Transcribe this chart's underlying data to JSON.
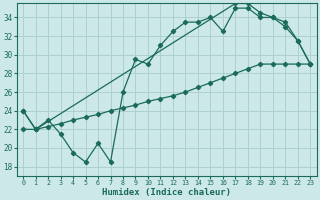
{
  "xlabel": "Humidex (Indice chaleur)",
  "xlim": [
    -0.5,
    23.5
  ],
  "ylim": [
    17,
    35.5
  ],
  "yticks": [
    18,
    20,
    22,
    24,
    26,
    28,
    30,
    32,
    34
  ],
  "xticks": [
    0,
    1,
    2,
    3,
    4,
    5,
    6,
    7,
    8,
    9,
    10,
    11,
    12,
    13,
    14,
    15,
    16,
    17,
    18,
    19,
    20,
    21,
    22,
    23
  ],
  "background_color": "#cde8e8",
  "grid_color": "#aed0d0",
  "line_color": "#1a6b5a",
  "curve1_x": [
    0,
    1,
    2,
    3,
    4,
    5,
    6,
    7,
    8,
    9,
    10,
    11,
    12,
    13,
    14,
    15,
    16,
    17,
    18,
    19,
    20,
    21,
    22,
    23
  ],
  "curve1_y": [
    24.0,
    22.0,
    23.0,
    21.5,
    19.5,
    18.5,
    20.5,
    18.5,
    26.0,
    29.5,
    29.0,
    31.0,
    32.5,
    33.5,
    33.5,
    34.0,
    32.5,
    35.0,
    35.0,
    34.0,
    34.0,
    33.5,
    31.5,
    29.0
  ],
  "curve2_x": [
    0,
    1,
    17,
    18,
    19,
    20,
    21,
    22,
    23
  ],
  "curve2_y": [
    24.0,
    22.0,
    35.5,
    35.5,
    34.5,
    34.0,
    33.0,
    31.5,
    29.0
  ],
  "curve3_x": [
    0,
    1,
    2,
    3,
    4,
    5,
    6,
    7,
    8,
    9,
    10,
    11,
    12,
    13,
    14,
    15,
    16,
    17,
    18,
    19,
    20,
    21,
    22,
    23
  ],
  "curve3_y": [
    22.0,
    22.0,
    22.3,
    22.6,
    23.0,
    23.3,
    23.6,
    24.0,
    24.3,
    24.6,
    25.0,
    25.3,
    25.6,
    26.0,
    26.5,
    27.0,
    27.5,
    28.0,
    28.5,
    29.0,
    29.0,
    29.0,
    29.0,
    29.0
  ]
}
